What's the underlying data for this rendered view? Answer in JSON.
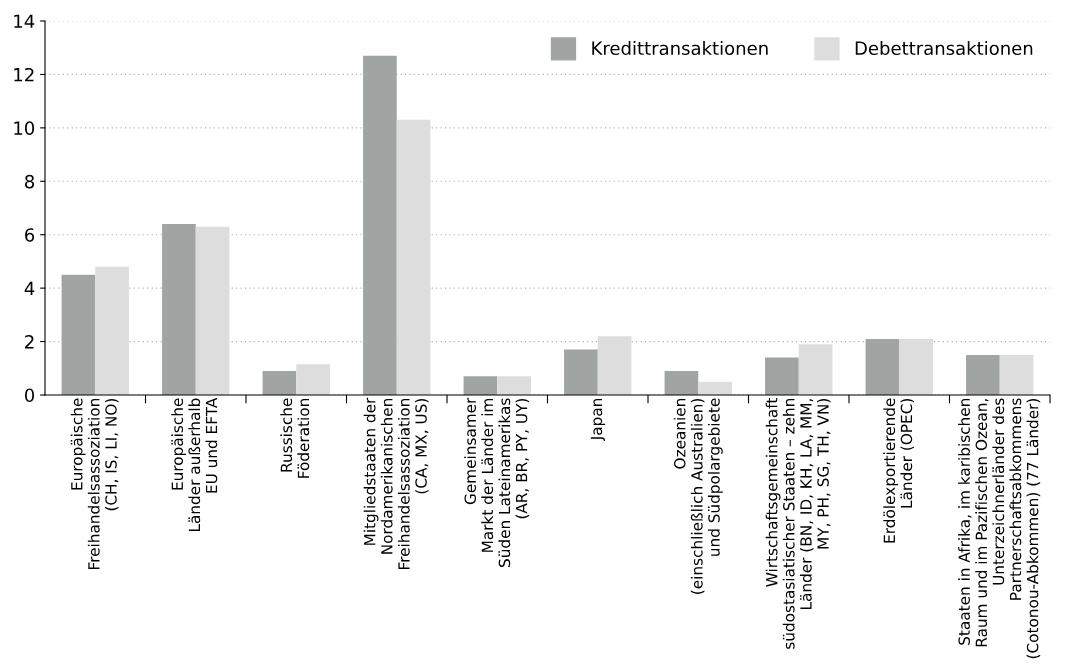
{
  "chart_data": {
    "type": "bar",
    "categories": [
      "Europäische\nFreihandelsassoziation\n(CH, IS, LI, NO)",
      "Europäische\nLänder außerhalb\nEU und EFTA",
      "Russische\nFöderation",
      "Mitgliedstaaten der\nNordamerikanischen\nFreihandelsassoziation\n(CA, MX, US)",
      "Gemeinsamer\nMarkt der Länder im\nSüden Lateinamerikas\n(AR, BR, PY, UY)",
      "Japan",
      "Ozeanien\n(einschließlich Australien)\nund Südpolargebiete",
      "Wirtschaftsgemeinschaft\nsüdostasiatischer Staaten – zehn\nLänder (BN, ID, KH, LA, MM,\nMY, PH, SG, TH, VN)",
      "Erdölexportierende\nLänder (OPEC)",
      "Staaten in Afrika, im karibischen\nRaum und im Pazifischen Ozean,\nUnterzeichnerländer des\nPartnerschaftsabkommens\n(Cotonou-Abkommen) (77 Länder)"
    ],
    "series": [
      {
        "name": "Kredittransaktionen",
        "color": "#a0a4a3",
        "values": [
          4.5,
          6.4,
          0.9,
          12.7,
          0.7,
          1.7,
          0.9,
          1.4,
          2.1,
          1.5
        ]
      },
      {
        "name": "Debettransaktionen",
        "color": "#dddddd",
        "values": [
          4.8,
          6.3,
          1.15,
          10.3,
          0.7,
          2.2,
          0.5,
          1.9,
          2.1,
          1.5
        ]
      }
    ],
    "ylim": [
      0,
      14
    ],
    "yticks": [
      0,
      2,
      4,
      6,
      8,
      10,
      12,
      14
    ],
    "grid": "y",
    "legend": "top right"
  }
}
